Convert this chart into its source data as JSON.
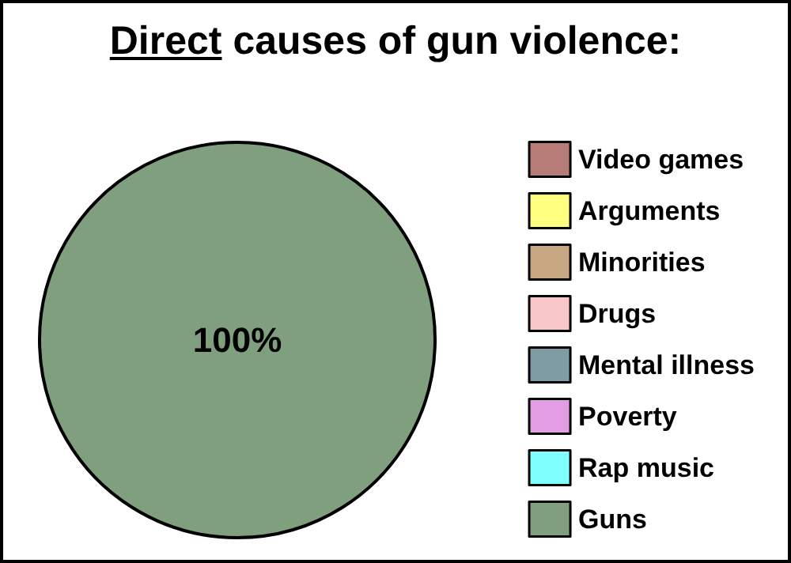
{
  "chart_data": {
    "type": "pie",
    "title": "Direct causes of gun violence:",
    "categories": [
      "Video games",
      "Arguments",
      "Minorities",
      "Drugs",
      "Mental illness",
      "Poverty",
      "Rap music",
      "Guns"
    ],
    "values": [
      0,
      0,
      0,
      0,
      0,
      0,
      0,
      100
    ],
    "colors": [
      "#b87c78",
      "#ffff80",
      "#c8a882",
      "#f8c8c8",
      "#7f9ba3",
      "#e39de3",
      "#80ffff",
      "#7f9f7f"
    ],
    "value_labels": [
      null,
      null,
      null,
      null,
      null,
      null,
      null,
      "100%"
    ],
    "legend": "right"
  }
}
